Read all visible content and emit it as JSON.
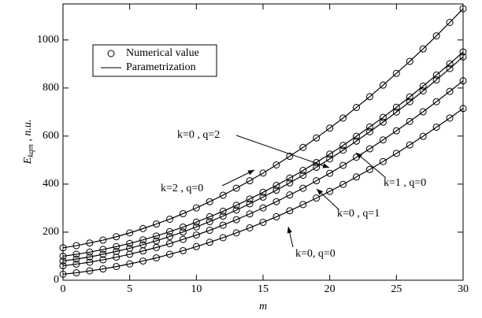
{
  "chart_data": {
    "type": "line",
    "xlabel": "m",
    "ylabel": {
      "symbol": "E",
      "subscript": "kqm",
      "unit": " , n.u."
    },
    "x": [
      0,
      1,
      2,
      3,
      4,
      5,
      6,
      7,
      8,
      9,
      10,
      11,
      12,
      13,
      14,
      15,
      16,
      17,
      18,
      19,
      20,
      21,
      22,
      23,
      24,
      25,
      26,
      27,
      28,
      29,
      30
    ],
    "xlim": [
      0,
      30
    ],
    "xticks": [
      0,
      5,
      10,
      15,
      20,
      25,
      30
    ],
    "ylim": [
      0,
      1150
    ],
    "yticks": [
      0,
      200,
      400,
      600,
      800,
      1000
    ],
    "legend": {
      "position": "upper left",
      "markers": "Numerical value",
      "lines": "Parametrization"
    },
    "color": "#000000",
    "series": [
      {
        "name": "k=0 , q=2",
        "values": [
          135,
          144,
          155,
          167,
          181,
          197,
          215,
          234,
          254,
          277,
          301,
          327,
          354,
          383,
          414,
          446,
          480,
          516,
          553,
          592,
          633,
          675,
          719,
          764,
          812,
          861,
          911,
          963,
          1017,
          1073,
          1130
        ]
      },
      {
        "name": "k=2 , q=0",
        "values": [
          100,
          108,
          117,
          128,
          140,
          153,
          168,
          184,
          202,
          221,
          242,
          264,
          287,
          312,
          338,
          366,
          395,
          425,
          457,
          490,
          525,
          561,
          599,
          638,
          678,
          720,
          763,
          808,
          854,
          901,
          950
        ]
      },
      {
        "name": "k=1 , q=0",
        "values": [
          80,
          88,
          97,
          108,
          120,
          133,
          148,
          164,
          182,
          201,
          222,
          244,
          267,
          292,
          318,
          346,
          375,
          405,
          437,
          470,
          505,
          541,
          579,
          618,
          658,
          700,
          743,
          788,
          834,
          881,
          930
        ]
      },
      {
        "name": "k=0 , q=1",
        "values": [
          60,
          67,
          75,
          85,
          96,
          108,
          122,
          136,
          152,
          170,
          188,
          208,
          229,
          252,
          276,
          301,
          327,
          355,
          383,
          414,
          445,
          478,
          512,
          547,
          584,
          622,
          661,
          701,
          743,
          786,
          830
        ]
      },
      {
        "name": "k=0, q=0",
        "values": [
          25,
          31,
          39,
          47,
          57,
          68,
          80,
          93,
          108,
          123,
          140,
          158,
          177,
          197,
          218,
          241,
          264,
          289,
          315,
          342,
          370,
          399,
          430,
          461,
          494,
          528,
          563,
          599,
          637,
          675,
          715
        ]
      }
    ]
  }
}
